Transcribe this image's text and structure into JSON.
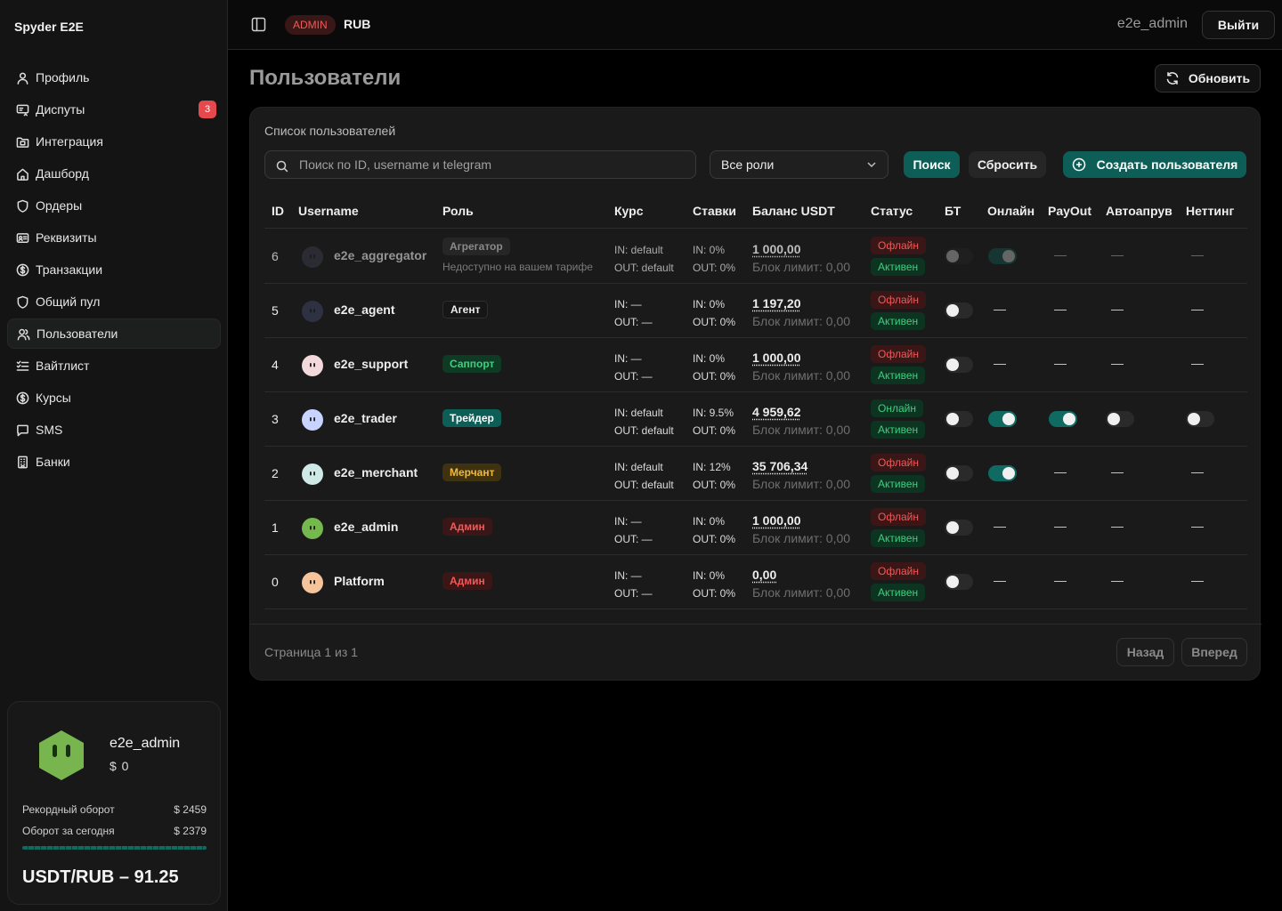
{
  "app": {
    "title": "Spyder E2E"
  },
  "sidebar": {
    "items": [
      {
        "label": "Профиль",
        "icon": "user-icon"
      },
      {
        "label": "Диспуты",
        "icon": "dispute-icon",
        "badge": "3"
      },
      {
        "label": "Интеграция",
        "icon": "folder-icon"
      },
      {
        "label": "Дашборд",
        "icon": "home-icon"
      },
      {
        "label": "Ордеры",
        "icon": "shield-icon"
      },
      {
        "label": "Реквизиты",
        "icon": "id-card-icon"
      },
      {
        "label": "Транзакции",
        "icon": "dollar-icon"
      },
      {
        "label": "Общий пул",
        "icon": "shield-icon"
      },
      {
        "label": "Пользователи",
        "icon": "users-icon",
        "active": true
      },
      {
        "label": "Вайтлист",
        "icon": "list-check-icon"
      },
      {
        "label": "Курсы",
        "icon": "dollar-icon"
      },
      {
        "label": "SMS",
        "icon": "message-icon"
      },
      {
        "label": "Банки",
        "icon": "building-icon"
      }
    ],
    "user_card": {
      "name": "e2e_admin",
      "balance": "$ 0",
      "record_label": "Рекордный оборот",
      "record_value": "$ 2459",
      "today_label": "Оборот за сегодня",
      "today_value": "$ 2379",
      "rate": "USDT/RUB – 91.25"
    }
  },
  "topbar": {
    "role_badge": "ADMIN",
    "currency": "RUB",
    "username": "e2e_admin",
    "logout_label": "Выйти"
  },
  "main": {
    "title": "Пользователи",
    "refresh_label": "Обновить",
    "panel_title": "Список пользователей",
    "search_placeholder": "Поиск по ID, username и telegram",
    "role_filter": "Все роли",
    "search_label": "Поиск",
    "reset_label": "Сбросить",
    "create_label": "Создать пользователя",
    "columns": [
      "ID",
      "Username",
      "Роль",
      "Курс",
      "Ставки",
      "Баланс USDT",
      "Статус",
      "БТ",
      "Онлайн",
      "PayOut",
      "Автоапрув",
      "Неттинг"
    ],
    "rows": [
      {
        "id": "6",
        "username": "e2e_aggregator",
        "role": "Агрегатор",
        "role_style": "aggregator",
        "note": "Недоступно на вашем тарифе",
        "course_in": "IN: default",
        "course_out": "OUT: default",
        "rate_in": "IN: 0%",
        "rate_out": "OUT: 0%",
        "balance": "1 000,00",
        "limit": "Блок лимит: 0,00",
        "status": "Офлайн",
        "status_kind": "off",
        "active": "Активен",
        "bt": "off-dim",
        "online": "on-dim",
        "payout": "—",
        "autoapprove": "—",
        "netting": "—",
        "dimmed": true,
        "avatar_color": "#2b2b33"
      },
      {
        "id": "5",
        "username": "e2e_agent",
        "role": "Агент",
        "role_style": "agent",
        "course_in": "IN: —",
        "course_out": "OUT: —",
        "rate_in": "IN: 0%",
        "rate_out": "OUT: 0%",
        "balance": "1 197,20",
        "limit": "Блок лимит: 0,00",
        "status": "Офлайн",
        "status_kind": "off",
        "active": "Активен",
        "bt": "off",
        "online": "—",
        "payout": "—",
        "autoapprove": "—",
        "netting": "—",
        "avatar_color": "#2e3142"
      },
      {
        "id": "4",
        "username": "e2e_support",
        "role": "Саппорт",
        "role_style": "support",
        "course_in": "IN: —",
        "course_out": "OUT: —",
        "rate_in": "IN: 0%",
        "rate_out": "OUT: 0%",
        "balance": "1 000,00",
        "limit": "Блок лимит: 0,00",
        "status": "Офлайн",
        "status_kind": "off",
        "active": "Активен",
        "bt": "off",
        "online": "—",
        "payout": "—",
        "autoapprove": "—",
        "netting": "—",
        "avatar_color": "#f3d9dc"
      },
      {
        "id": "3",
        "username": "e2e_trader",
        "role": "Трейдер",
        "role_style": "trader",
        "course_in": "IN: default",
        "course_out": "OUT: default",
        "rate_in": "IN: 9.5%",
        "rate_out": "OUT: 0%",
        "balance": "4 959,62",
        "limit": "Блок лимит: 0,00",
        "status": "Онлайн",
        "status_kind": "on",
        "active": "Активен",
        "bt": "off",
        "online": "on",
        "payout": "on",
        "autoapprove": "off",
        "netting": "off",
        "avatar_color": "#c8d4ff"
      },
      {
        "id": "2",
        "username": "e2e_merchant",
        "role": "Мерчант",
        "role_style": "merchant",
        "course_in": "IN: default",
        "course_out": "OUT: default",
        "rate_in": "IN: 12%",
        "rate_out": "OUT: 0%",
        "balance": "35 706,34",
        "limit": "Блок лимит: 0,00",
        "status": "Офлайн",
        "status_kind": "off",
        "active": "Активен",
        "bt": "off",
        "online": "on",
        "payout": "—",
        "autoapprove": "—",
        "netting": "—",
        "avatar_color": "#cfe9e6"
      },
      {
        "id": "1",
        "username": "e2e_admin",
        "role": "Админ",
        "role_style": "admin",
        "course_in": "IN: —",
        "course_out": "OUT: —",
        "rate_in": "IN: 0%",
        "rate_out": "OUT: 0%",
        "balance": "1 000,00",
        "limit": "Блок лимит: 0,00",
        "status": "Офлайн",
        "status_kind": "off",
        "active": "Активен",
        "bt": "off",
        "online": "—",
        "payout": "—",
        "autoapprove": "—",
        "netting": "—",
        "avatar_color": "#75b84e"
      },
      {
        "id": "0",
        "username": "Platform",
        "role": "Админ",
        "role_style": "admin",
        "course_in": "IN: —",
        "course_out": "OUT: —",
        "rate_in": "IN: 0%",
        "rate_out": "OUT: 0%",
        "balance": "0,00",
        "limit": "Блок лимит: 0,00",
        "status": "Офлайн",
        "status_kind": "off",
        "active": "Активен",
        "bt": "off",
        "online": "—",
        "payout": "—",
        "autoapprove": "—",
        "netting": "—",
        "avatar_color": "#f6c49a"
      }
    ],
    "pagination": {
      "text": "Страница 1 из 1",
      "prev_label": "Назад",
      "next_label": "Вперед"
    }
  },
  "colors": {
    "accent": "#0d5e57",
    "danger": "#e5484d",
    "success": "#3fcf80"
  }
}
